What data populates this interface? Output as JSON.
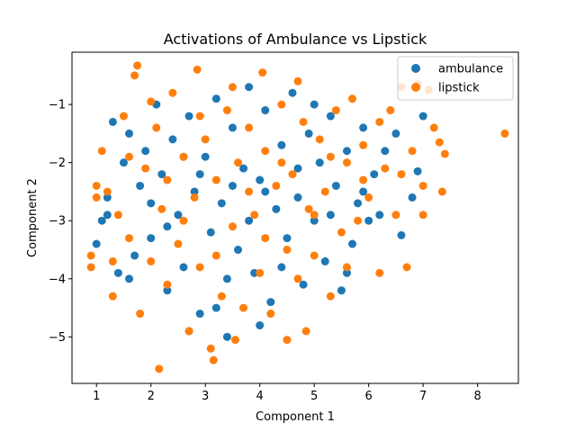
{
  "chart_data": {
    "type": "scatter",
    "title": "Activations of Ambulance vs Lipstick",
    "xlabel": "Component 1",
    "ylabel": "Component 2",
    "xlim": [
      0.55,
      8.75
    ],
    "ylim": [
      -5.8,
      -0.1
    ],
    "xticks": [
      "1",
      "2",
      "3",
      "4",
      "5",
      "6",
      "7",
      "8"
    ],
    "yticks": [
      "−1",
      "−2",
      "−3",
      "−4",
      "−5"
    ],
    "grid": false,
    "legend_placement": "top-right",
    "series": [
      {
        "name": "ambulance",
        "color": "#1f77b4",
        "points": [
          [
            1.0,
            -3.4
          ],
          [
            1.1,
            -3.0
          ],
          [
            1.2,
            -2.6
          ],
          [
            1.3,
            -1.3
          ],
          [
            1.4,
            -3.9
          ],
          [
            1.5,
            -2.0
          ],
          [
            1.6,
            -1.5
          ],
          [
            1.7,
            -3.6
          ],
          [
            1.8,
            -2.4
          ],
          [
            1.9,
            -1.8
          ],
          [
            2.0,
            -3.3
          ],
          [
            2.1,
            -1.0
          ],
          [
            2.2,
            -2.2
          ],
          [
            2.3,
            -4.2
          ],
          [
            2.4,
            -1.6
          ],
          [
            2.5,
            -2.9
          ],
          [
            2.6,
            -3.8
          ],
          [
            2.7,
            -1.2
          ],
          [
            2.8,
            -2.5
          ],
          [
            2.9,
            -4.6
          ],
          [
            3.0,
            -1.9
          ],
          [
            3.1,
            -3.2
          ],
          [
            3.2,
            -0.9
          ],
          [
            3.3,
            -2.7
          ],
          [
            3.4,
            -4.0
          ],
          [
            3.5,
            -1.4
          ],
          [
            3.6,
            -3.5
          ],
          [
            3.7,
            -2.1
          ],
          [
            3.8,
            -0.7
          ],
          [
            3.9,
            -3.9
          ],
          [
            4.0,
            -2.3
          ],
          [
            4.1,
            -1.1
          ],
          [
            4.2,
            -4.4
          ],
          [
            4.3,
            -2.8
          ],
          [
            4.4,
            -1.7
          ],
          [
            4.5,
            -3.3
          ],
          [
            4.6,
            -0.8
          ],
          [
            4.7,
            -2.6
          ],
          [
            4.8,
            -4.1
          ],
          [
            4.9,
            -1.5
          ],
          [
            5.0,
            -3.0
          ],
          [
            5.1,
            -2.0
          ],
          [
            5.2,
            -3.7
          ],
          [
            5.3,
            -1.2
          ],
          [
            5.4,
            -2.4
          ],
          [
            5.5,
            -4.2
          ],
          [
            5.6,
            -1.8
          ],
          [
            5.7,
            -3.4
          ],
          [
            5.8,
            -2.7
          ],
          [
            5.9,
            -1.4
          ],
          [
            6.0,
            -3.0
          ],
          [
            6.1,
            -2.2
          ],
          [
            6.3,
            -1.8
          ],
          [
            6.5,
            -1.5
          ],
          [
            6.6,
            -3.25
          ],
          [
            6.8,
            -2.6
          ],
          [
            6.9,
            -2.15
          ],
          [
            7.0,
            -1.2
          ],
          [
            1.2,
            -2.9
          ],
          [
            1.6,
            -4.0
          ],
          [
            2.0,
            -2.7
          ],
          [
            2.3,
            -3.1
          ],
          [
            2.6,
            -1.9
          ],
          [
            2.9,
            -2.2
          ],
          [
            3.2,
            -4.5
          ],
          [
            3.5,
            -2.4
          ],
          [
            3.8,
            -3.0
          ],
          [
            4.1,
            -2.5
          ],
          [
            4.4,
            -3.8
          ],
          [
            4.7,
            -2.1
          ],
          [
            5.0,
            -1.0
          ],
          [
            5.3,
            -2.9
          ],
          [
            5.6,
            -3.9
          ],
          [
            5.9,
            -2.5
          ],
          [
            6.2,
            -2.9
          ],
          [
            4.0,
            -4.8
          ],
          [
            3.4,
            -5.0
          ],
          [
            2.7,
            -4.9
          ]
        ]
      },
      {
        "name": "lipstick",
        "color": "#ff7f0e",
        "points": [
          [
            0.9,
            -3.6
          ],
          [
            0.9,
            -3.8
          ],
          [
            1.0,
            -2.4
          ],
          [
            1.1,
            -1.8
          ],
          [
            1.2,
            -2.5
          ],
          [
            1.3,
            -4.3
          ],
          [
            1.4,
            -2.9
          ],
          [
            1.5,
            -1.2
          ],
          [
            1.6,
            -3.3
          ],
          [
            1.7,
            -0.5
          ],
          [
            1.75,
            -0.33
          ],
          [
            1.8,
            -4.6
          ],
          [
            1.9,
            -2.1
          ],
          [
            2.0,
            -3.7
          ],
          [
            2.1,
            -1.4
          ],
          [
            2.15,
            -5.55
          ],
          [
            2.2,
            -2.8
          ],
          [
            2.3,
            -4.1
          ],
          [
            2.4,
            -0.8
          ],
          [
            2.5,
            -3.4
          ],
          [
            2.6,
            -1.9
          ],
          [
            2.7,
            -4.9
          ],
          [
            2.8,
            -2.6
          ],
          [
            2.85,
            -0.4
          ],
          [
            2.9,
            -3.8
          ],
          [
            3.0,
            -1.6
          ],
          [
            3.1,
            -5.2
          ],
          [
            3.15,
            -5.4
          ],
          [
            3.2,
            -2.3
          ],
          [
            3.3,
            -4.3
          ],
          [
            3.4,
            -1.1
          ],
          [
            3.5,
            -3.1
          ],
          [
            3.55,
            -5.05
          ],
          [
            3.6,
            -2.0
          ],
          [
            3.7,
            -4.5
          ],
          [
            3.8,
            -1.4
          ],
          [
            3.9,
            -2.9
          ],
          [
            4.0,
            -3.9
          ],
          [
            4.05,
            -0.45
          ],
          [
            4.1,
            -1.8
          ],
          [
            4.2,
            -4.6
          ],
          [
            4.3,
            -2.4
          ],
          [
            4.4,
            -1.0
          ],
          [
            4.5,
            -3.5
          ],
          [
            4.5,
            -5.05
          ],
          [
            4.6,
            -2.2
          ],
          [
            4.7,
            -4.0
          ],
          [
            4.8,
            -1.3
          ],
          [
            4.85,
            -4.9
          ],
          [
            4.9,
            -2.8
          ],
          [
            5.0,
            -3.6
          ],
          [
            5.1,
            -1.6
          ],
          [
            5.2,
            -2.5
          ],
          [
            5.3,
            -4.3
          ],
          [
            5.4,
            -1.1
          ],
          [
            5.5,
            -3.2
          ],
          [
            5.6,
            -2.0
          ],
          [
            5.7,
            -0.9
          ],
          [
            5.8,
            -3.0
          ],
          [
            5.9,
            -1.7
          ],
          [
            6.0,
            -2.6
          ],
          [
            6.2,
            -3.9
          ],
          [
            6.3,
            -2.1
          ],
          [
            6.4,
            -1.1
          ],
          [
            6.5,
            -2.9
          ],
          [
            6.6,
            -0.7
          ],
          [
            6.7,
            -3.8
          ],
          [
            6.8,
            -1.8
          ],
          [
            6.9,
            -0.65
          ],
          [
            7.0,
            -2.4
          ],
          [
            7.1,
            -0.75
          ],
          [
            7.2,
            -1.4
          ],
          [
            7.3,
            -1.65
          ],
          [
            7.35,
            -2.5
          ],
          [
            7.4,
            -1.85
          ],
          [
            8.5,
            -1.5
          ],
          [
            1.0,
            -2.6
          ],
          [
            1.3,
            -3.7
          ],
          [
            1.6,
            -1.9
          ],
          [
            2.0,
            -0.95
          ],
          [
            2.3,
            -2.3
          ],
          [
            2.6,
            -3.0
          ],
          [
            2.9,
            -1.2
          ],
          [
            3.2,
            -3.6
          ],
          [
            3.5,
            -0.7
          ],
          [
            3.8,
            -2.5
          ],
          [
            4.1,
            -3.3
          ],
          [
            4.4,
            -2.0
          ],
          [
            4.7,
            -0.6
          ],
          [
            5.0,
            -2.9
          ],
          [
            5.3,
            -1.9
          ],
          [
            5.6,
            -3.8
          ],
          [
            5.9,
            -2.3
          ],
          [
            6.2,
            -1.3
          ],
          [
            6.6,
            -2.2
          ],
          [
            7.0,
            -2.9
          ]
        ]
      }
    ]
  }
}
